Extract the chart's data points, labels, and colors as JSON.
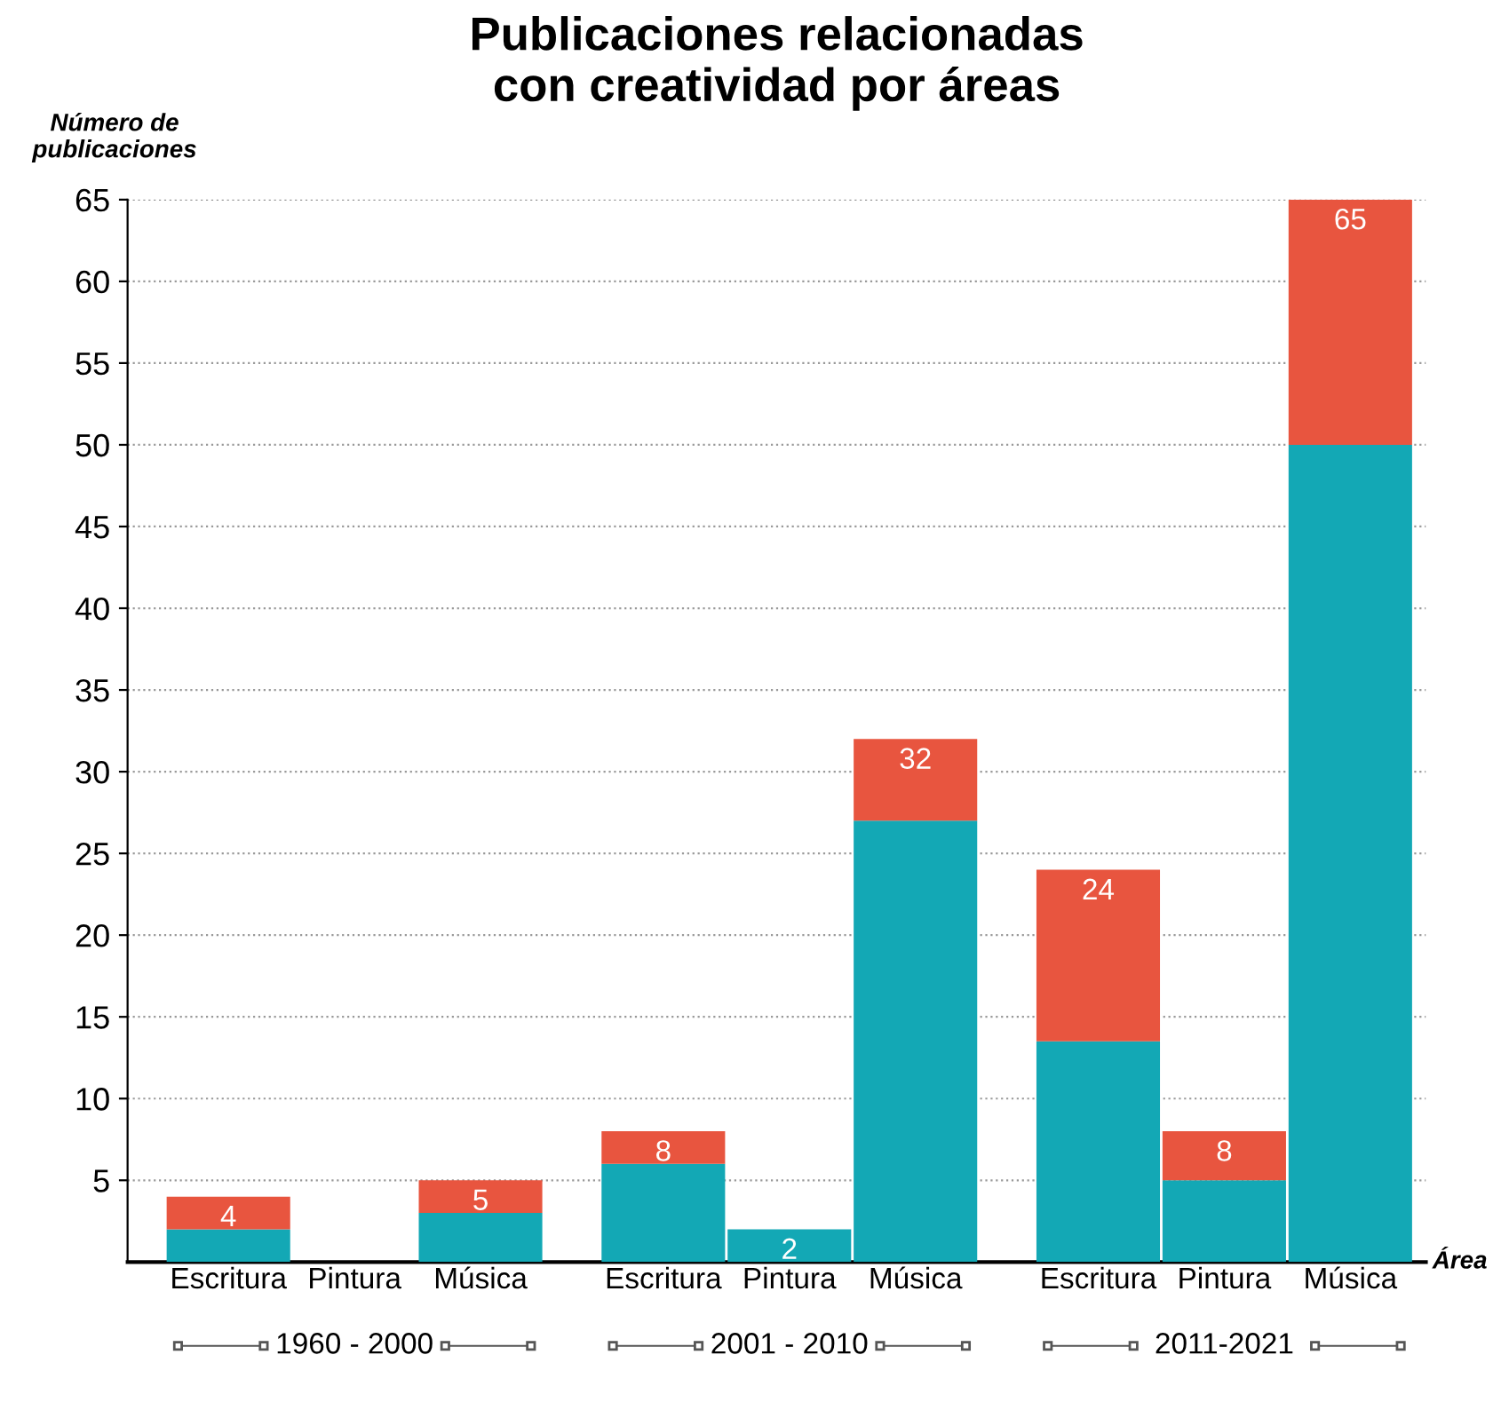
{
  "chart_data": {
    "type": "bar",
    "title": "Publicaciones relacionadas\ncon creatividad por áreas",
    "ylabel": "Número de\npublicaciones",
    "xlabel": "Área",
    "categories": [
      "Escritura",
      "Pintura",
      "Música",
      "Escritura",
      "Pintura",
      "Música",
      "Escritura",
      "Pintura",
      "Música"
    ],
    "stacked": true,
    "series": [
      {
        "color": "#13a8b5",
        "values": [
          2,
          0,
          3,
          6,
          2,
          27,
          13.5,
          5,
          50
        ]
      },
      {
        "color": "#e8553f",
        "values": [
          2,
          0,
          2,
          2,
          0,
          5,
          10.5,
          3,
          15
        ]
      }
    ],
    "totals": [
      "4",
      null,
      "5",
      "8",
      "2",
      "32",
      "24",
      "8",
      "65"
    ],
    "annotations": [
      "1960 - 2000",
      "2001 - 2010",
      "2011-2021"
    ],
    "ylim": [
      0,
      65
    ],
    "yticks": [
      5,
      10,
      15,
      20,
      25,
      30,
      35,
      40,
      45,
      50,
      55,
      60,
      65
    ],
    "grid": "y"
  }
}
